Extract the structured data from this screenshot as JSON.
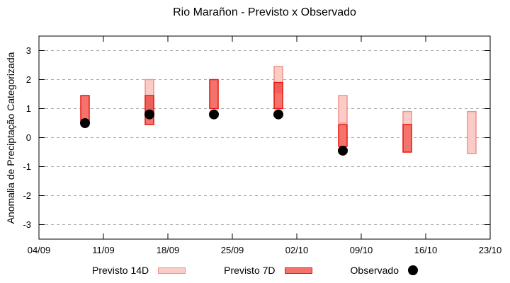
{
  "title": "Rio Marañon - Previsto x Observado",
  "chart_data": {
    "type": "candlestick-range",
    "title": "Rio Marañon - Previsto x Observado",
    "ylabel": "Anomalia de Preciptação Categorizada",
    "xlabel": "",
    "ylim": [
      -3.5,
      3.5
    ],
    "yticks": [
      3,
      2,
      1,
      0,
      -1,
      -2,
      -3
    ],
    "xtick_labels": [
      "04/09",
      "11/09",
      "18/09",
      "25/09",
      "02/10",
      "09/10",
      "16/10",
      "23/10"
    ],
    "x_range_days": 49,
    "grid": "horizontal-dashed",
    "grid_color": "#a9a9a9",
    "overlap_fill": "#ee5f58",
    "legend": [
      {
        "key": "previsto_14d",
        "label": "Previsto 14D",
        "type": "box",
        "fill": "#f9ccc8",
        "border": "#ef9087"
      },
      {
        "key": "previsto_7d",
        "label": "Previsto 7D",
        "type": "box",
        "fill": "#f4736c",
        "border": "#ea150d"
      },
      {
        "key": "observado",
        "label": "Observado",
        "type": "dot",
        "fill": "#000000"
      }
    ],
    "points": [
      {
        "date": "09/09",
        "day": 5,
        "previsto_14d": [
          0.5,
          1.45
        ],
        "previsto_7d": [
          0.5,
          1.45
        ],
        "observado": 0.5
      },
      {
        "date": "16/09",
        "day": 12,
        "previsto_14d": [
          0.8,
          2.0
        ],
        "previsto_7d": [
          0.45,
          1.45
        ],
        "observado": 0.8
      },
      {
        "date": "23/09",
        "day": 19,
        "previsto_14d": [
          1.0,
          2.0
        ],
        "previsto_7d": [
          1.0,
          2.0
        ],
        "observado": 0.8
      },
      {
        "date": "30/09",
        "day": 26,
        "previsto_14d": [
          1.5,
          2.45
        ],
        "previsto_7d": [
          1.0,
          1.9
        ],
        "observado": 0.8
      },
      {
        "date": "07/10",
        "day": 33,
        "previsto_14d": [
          0.5,
          1.45
        ],
        "previsto_7d": [
          -0.3,
          0.45
        ],
        "observado": -0.45
      },
      {
        "date": "14/10",
        "day": 40,
        "previsto_14d": [
          0.45,
          0.9
        ],
        "previsto_7d": [
          -0.5,
          0.45
        ],
        "observado": null
      },
      {
        "date": "21/10",
        "day": 47,
        "previsto_14d": [
          -0.55,
          0.9
        ],
        "previsto_7d": null,
        "observado": null
      }
    ]
  }
}
